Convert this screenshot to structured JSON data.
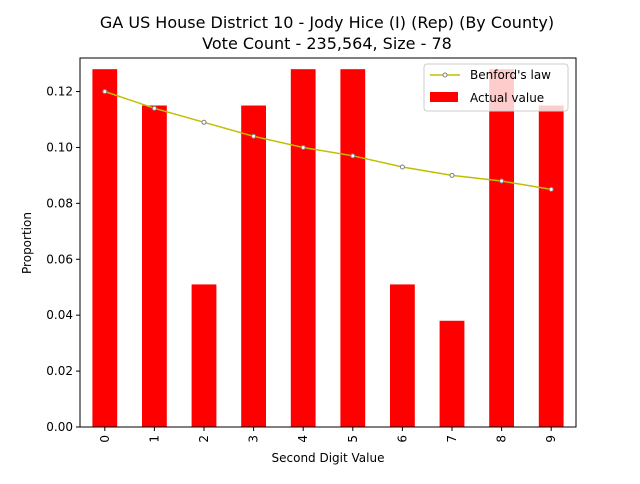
{
  "chart_data": {
    "type": "bar",
    "title": "GA US House District 10 - Jody Hice (I) (Rep) (By County)",
    "subtitle": "Vote Count - 235,564, Size - 78",
    "xlabel": "Second Digit Value",
    "ylabel": "Proportion",
    "categories": [
      "0",
      "1",
      "2",
      "3",
      "4",
      "5",
      "6",
      "7",
      "8",
      "9"
    ],
    "ylim": [
      0,
      0.132
    ],
    "yticks": [
      0.0,
      0.02,
      0.04,
      0.06,
      0.08,
      0.1,
      0.12
    ],
    "ytick_labels": [
      "0.00",
      "0.02",
      "0.04",
      "0.06",
      "0.08",
      "0.10",
      "0.12"
    ],
    "grid": false,
    "legend_position": "top-right",
    "series": [
      {
        "name": "Actual value",
        "kind": "bar",
        "color": "#ff0000",
        "values": [
          0.128,
          0.115,
          0.051,
          0.115,
          0.128,
          0.128,
          0.051,
          0.038,
          0.128,
          0.115
        ]
      },
      {
        "name": "Benford's law",
        "kind": "line",
        "color": "#bfbf00",
        "marker_edge": "#808080",
        "values": [
          0.12,
          0.114,
          0.109,
          0.104,
          0.1,
          0.097,
          0.093,
          0.09,
          0.088,
          0.085
        ]
      }
    ]
  }
}
